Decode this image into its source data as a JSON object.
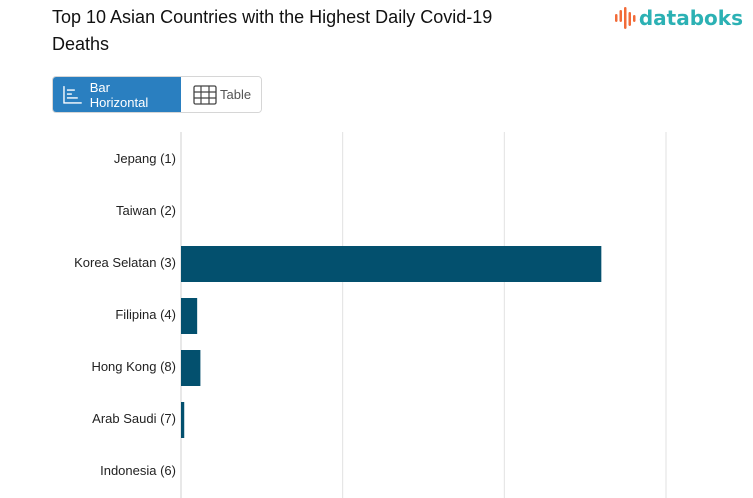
{
  "header": {
    "title": "Top 10 Asian Countries with the Highest Daily Covid-19 Deaths",
    "logo_text": "databoks"
  },
  "tabs": [
    {
      "label": "Bar Horizontal",
      "active": true,
      "icon": "bar-horizontal-icon"
    },
    {
      "label": "Table",
      "active": false,
      "icon": "table-grid-icon"
    }
  ],
  "colors": {
    "bar": "#03506e",
    "accent": "#2a7fc0",
    "logo_teal": "#2cb1b4",
    "logo_orange": "#f26b38",
    "grid": "#e2e2e2"
  },
  "chart_data": {
    "type": "bar",
    "orientation": "horizontal",
    "title": "Top 10 Asian Countries with the Highest Daily Covid-19 Deaths",
    "categories": [
      "Jepang (1)",
      "Taiwan (2)",
      "Korea Selatan (3)",
      "Filipina (4)",
      "Hong Kong (8)",
      "Arab Saudi (7)",
      "Indonesia (6)"
    ],
    "values": [
      0,
      0,
      130,
      5,
      6,
      1,
      0
    ],
    "xlim": [
      0,
      150
    ],
    "grid": true,
    "legend": "none"
  }
}
